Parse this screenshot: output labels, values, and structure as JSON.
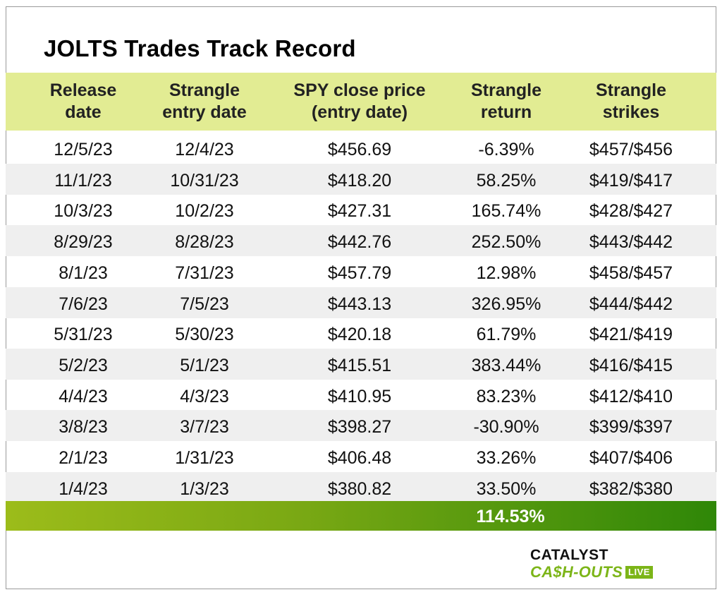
{
  "title": "JOLTS Trades Track Record",
  "headers": [
    [
      "Release",
      "date"
    ],
    [
      "Strangle",
      "entry date"
    ],
    [
      "SPY close price",
      "(entry date)"
    ],
    [
      "Strangle",
      "return"
    ],
    [
      "Strangle",
      "strikes"
    ]
  ],
  "rows": [
    [
      "12/5/23",
      "12/4/23",
      "$456.69",
      "-6.39%",
      "$457/$456"
    ],
    [
      "11/1/23",
      "10/31/23",
      "$418.20",
      "58.25%",
      "$419/$417"
    ],
    [
      "10/3/23",
      "10/2/23",
      "$427.31",
      "165.74%",
      "$428/$427"
    ],
    [
      "8/29/23",
      "8/28/23",
      "$442.76",
      "252.50%",
      "$443/$442"
    ],
    [
      "8/1/23",
      "7/31/23",
      "$457.79",
      "12.98%",
      "$458/$457"
    ],
    [
      "7/6/23",
      "7/5/23",
      "$443.13",
      "326.95%",
      "$444/$442"
    ],
    [
      "5/31/23",
      "5/30/23",
      "$420.18",
      "61.79%",
      "$421/$419"
    ],
    [
      "5/2/23",
      "5/1/23",
      "$415.51",
      "383.44%",
      "$416/$415"
    ],
    [
      "4/4/23",
      "4/3/23",
      "$410.95",
      "83.23%",
      "$412/$410"
    ],
    [
      "3/8/23",
      "3/7/23",
      "$398.27",
      "-30.90%",
      "$399/$397"
    ],
    [
      "2/1/23",
      "1/31/23",
      "$406.48",
      "33.26%",
      "$407/$406"
    ],
    [
      "1/4/23",
      "1/3/23",
      "$380.82",
      "33.50%",
      "$382/$380"
    ]
  ],
  "total": "114.53%",
  "logo": {
    "line1": "CATALYST",
    "line2": "CA$H-OUTS",
    "badge": "LIVE"
  },
  "colors": {
    "header_bg": "#e2ec93",
    "alt_row_bg": "#efefef",
    "total_gradient_start": "#9cbc1a",
    "total_gradient_end": "#2f8708",
    "brand_green": "#7cb518"
  }
}
